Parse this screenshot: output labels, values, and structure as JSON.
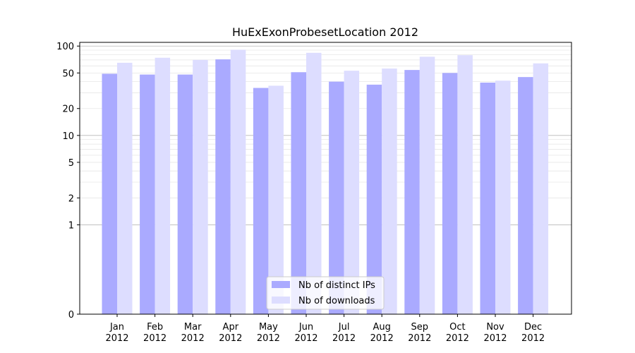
{
  "chart_data": {
    "type": "bar",
    "title": "HuExExonProbesetLocation 2012",
    "xlabel": "",
    "ylabel": "",
    "categories": [
      "Jan\n2012",
      "Feb\n2012",
      "Mar\n2012",
      "Apr\n2012",
      "May\n2012",
      "Jun\n2012",
      "Jul\n2012",
      "Aug\n2012",
      "Sep\n2012",
      "Oct\n2012",
      "Nov\n2012",
      "Dec\n2012"
    ],
    "series": [
      {
        "name": "Nb of distinct IPs",
        "color": "#aaaaff",
        "values": [
          49,
          48,
          48,
          71,
          34,
          51,
          40,
          37,
          54,
          50,
          39,
          45
        ]
      },
      {
        "name": "Nb of downloads",
        "color": "#ddddff",
        "values": [
          65,
          74,
          70,
          91,
          36,
          84,
          53,
          56,
          76,
          79,
          41,
          64
        ]
      }
    ],
    "y_scale": "symlog",
    "ylim": [
      0,
      110
    ],
    "y_ticks": [
      0,
      1,
      2,
      5,
      10,
      20,
      50,
      100
    ],
    "grid": true,
    "legend_position": "lower center"
  }
}
